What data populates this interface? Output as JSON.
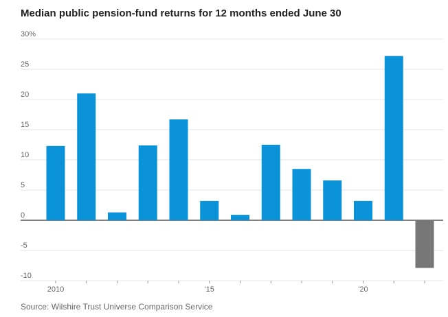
{
  "title": "Median public pension-fund returns for 12 months ended June 30",
  "source": "Source: Wilshire Trust Universe Comparison Service",
  "colors": {
    "positive": "#0a93d8",
    "negative": "#777777",
    "grid": "#e3e3e3",
    "zero_line": "#333333",
    "text": "#666666"
  },
  "chart_data": {
    "type": "bar",
    "title": "Median public pension-fund returns for 12 months ended June 30",
    "xlabel": "",
    "ylabel": "",
    "categories": [
      2010,
      2011,
      2012,
      2013,
      2014,
      2015,
      2016,
      2017,
      2018,
      2019,
      2020,
      2021,
      2022
    ],
    "values": [
      12.3,
      21.0,
      1.3,
      12.4,
      16.7,
      3.2,
      0.9,
      12.5,
      8.5,
      6.6,
      3.2,
      27.2,
      -7.9
    ],
    "ylim": [
      -10,
      30
    ],
    "y_ticks": [
      30,
      25,
      20,
      15,
      10,
      5,
      0,
      -5,
      -10
    ],
    "y_tick_labels": [
      "30%",
      "25",
      "20",
      "15",
      "10",
      "5",
      "0",
      "-5",
      "-10"
    ],
    "x_tick_labels": [
      {
        "year": 2010,
        "label": "2010"
      },
      {
        "year": 2015,
        "label": "'15"
      },
      {
        "year": 2020,
        "label": "'20"
      }
    ],
    "grid": true,
    "legend": "none"
  }
}
